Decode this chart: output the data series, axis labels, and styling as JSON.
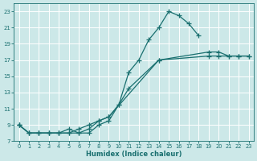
{
  "xlabel": "Humidex (Indice chaleur)",
  "bg_color": "#cce8e8",
  "grid_color": "#ffffff",
  "line_color": "#1a7070",
  "xlim": [
    -0.5,
    23.5
  ],
  "ylim": [
    7,
    24
  ],
  "xticks": [
    0,
    1,
    2,
    3,
    4,
    5,
    6,
    7,
    8,
    9,
    10,
    11,
    12,
    13,
    14,
    15,
    16,
    17,
    18,
    19,
    20,
    21,
    22,
    23
  ],
  "yticks": [
    7,
    9,
    11,
    13,
    15,
    17,
    19,
    21,
    23
  ],
  "line1_x": [
    0,
    1,
    2,
    3,
    4,
    5,
    6,
    7,
    8,
    9,
    10,
    11,
    12,
    13,
    14,
    15,
    16,
    17,
    18
  ],
  "line1_y": [
    9,
    8,
    8,
    8,
    8,
    8,
    8,
    8,
    9,
    9.5,
    11.5,
    15.5,
    17.0,
    19.5,
    21.0,
    23.0,
    22.5,
    21.5,
    20.0
  ],
  "line2_x": [
    0,
    1,
    2,
    3,
    4,
    5,
    6,
    7,
    8,
    9,
    14,
    19,
    20,
    21,
    22,
    23
  ],
  "line2_y": [
    9,
    8,
    8,
    8,
    8,
    8,
    8.5,
    9.0,
    9.5,
    10.0,
    17.0,
    18.0,
    18.0,
    17.5,
    17.5,
    17.5
  ],
  "line3_x": [
    0,
    1,
    2,
    3,
    4,
    5,
    6,
    7,
    8,
    9,
    10,
    11,
    14,
    19,
    20,
    21,
    22,
    23
  ],
  "line3_y": [
    9,
    8,
    8,
    8,
    8,
    8.5,
    8.0,
    8.5,
    9.5,
    10.0,
    11.5,
    13.5,
    17.0,
    17.5,
    17.5,
    17.5,
    17.5,
    17.5
  ]
}
